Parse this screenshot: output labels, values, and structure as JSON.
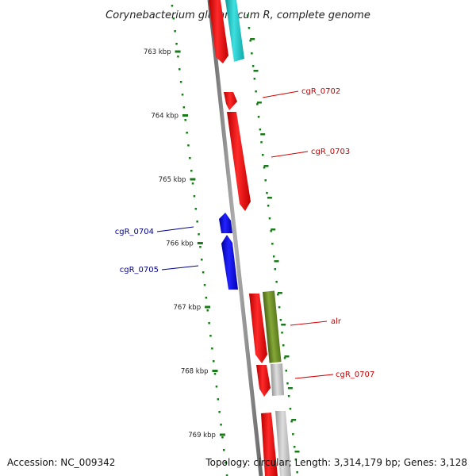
{
  "title": "Corynebacterium glutamicum R, complete genome",
  "footer": {
    "accession": "Accession: NC_009342",
    "summary": "Topology: circular; Length: 3,314,179 bp; Genes: 3,128"
  },
  "ticks": [
    "763 kbp",
    "764 kbp",
    "765 kbp",
    "766 kbp",
    "767 kbp",
    "768 kbp",
    "769 kbp"
  ],
  "colors": {
    "forward": "#ff0000",
    "reverse": "#0000ee",
    "teal": "#22cccc",
    "olive": "#6e8b28",
    "gray": "#bbbbbb",
    "backbone": "#888888",
    "tick": "#1a7a1a",
    "forward_label": "#cc0000",
    "reverse_label": "#00008b"
  },
  "genes": [
    {
      "id": "g-top-red",
      "label": "",
      "strand": "forward",
      "ring": "forward",
      "color": "red"
    },
    {
      "id": "g-top-teal",
      "label": "",
      "strand": "forward",
      "ring": "outer",
      "color": "teal"
    },
    {
      "id": "g0702",
      "label": "cgR_0702",
      "strand": "forward",
      "ring": "forward",
      "color": "red"
    },
    {
      "id": "g0703",
      "label": "cgR_0703",
      "strand": "forward",
      "ring": "forward",
      "color": "red"
    },
    {
      "id": "g0704",
      "label": "cgR_0704",
      "strand": "reverse",
      "ring": "reverse",
      "color": "blue"
    },
    {
      "id": "g0705",
      "label": "cgR_0705",
      "strand": "reverse",
      "ring": "reverse",
      "color": "blue"
    },
    {
      "id": "galr",
      "label": "alr",
      "strand": "forward",
      "ring": "forward",
      "color": "red"
    },
    {
      "id": "galr-cog",
      "label": "",
      "strand": "forward",
      "ring": "outer",
      "color": "olive"
    },
    {
      "id": "g0707",
      "label": "cgR_0707",
      "strand": "forward",
      "ring": "forward",
      "color": "red"
    },
    {
      "id": "g0707-cog",
      "label": "",
      "strand": "forward",
      "ring": "outer",
      "color": "gray"
    },
    {
      "id": "g-bottom-red",
      "label": "",
      "strand": "forward",
      "ring": "forward",
      "color": "red"
    },
    {
      "id": "g-bottom-gray",
      "label": "",
      "strand": "forward",
      "ring": "outer",
      "color": "gray"
    }
  ]
}
